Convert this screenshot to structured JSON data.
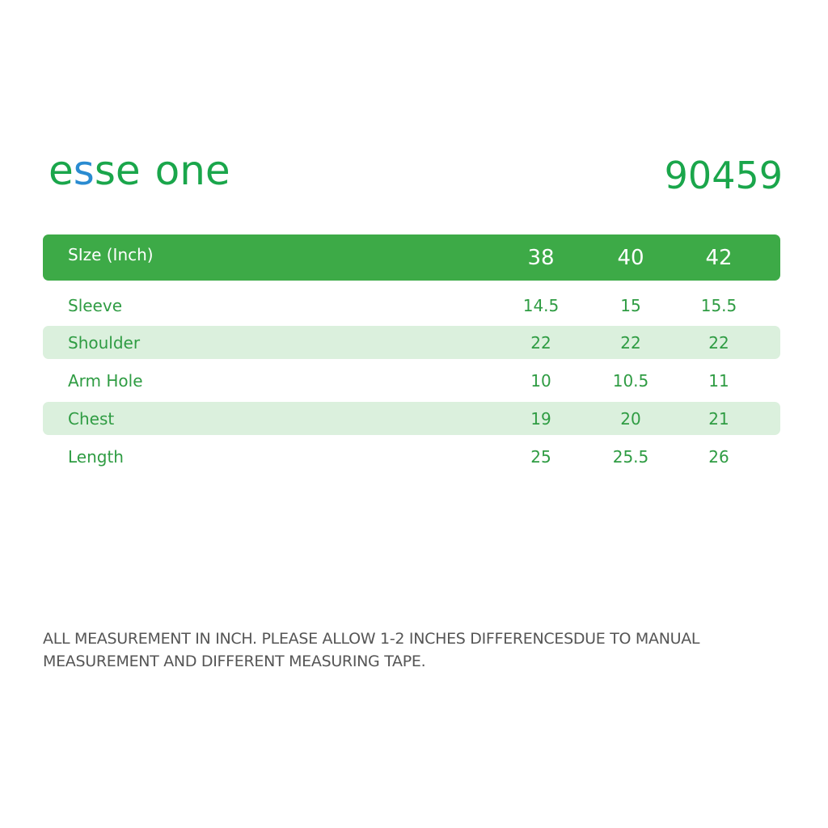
{
  "brand": {
    "part1": "e",
    "part2": "s",
    "part3": "se",
    "part4": "one"
  },
  "product_code": "90459",
  "table": {
    "header_label": "SIze (Inch)",
    "sizes": [
      "38",
      "40",
      "42"
    ],
    "rows": [
      {
        "label": "Sleeve",
        "values": [
          "14.5",
          "15",
          "15.5"
        ]
      },
      {
        "label": "Shoulder",
        "values": [
          "22",
          "22",
          "22"
        ]
      },
      {
        "label": "Arm Hole",
        "values": [
          "10",
          "10.5",
          "11"
        ]
      },
      {
        "label": "Chest",
        "values": [
          "19",
          "20",
          "21"
        ]
      },
      {
        "label": "Length",
        "values": [
          "25",
          "25.5",
          "26"
        ]
      }
    ]
  },
  "note": {
    "line1": "ALL MEASUREMENT IN INCH. PLEASE ALLOW 1-2 INCHES DIFFERENCESDUE TO MANUAL",
    "line2": "MEASUREMENT AND DIFFERENT MEASURING TAPE."
  },
  "colors": {
    "brand_green": "#1aa64b",
    "brand_blue": "#2a8bd1",
    "header_green": "#3daa47",
    "row_shade": "#dbf0dd",
    "note_gray": "#555555"
  }
}
